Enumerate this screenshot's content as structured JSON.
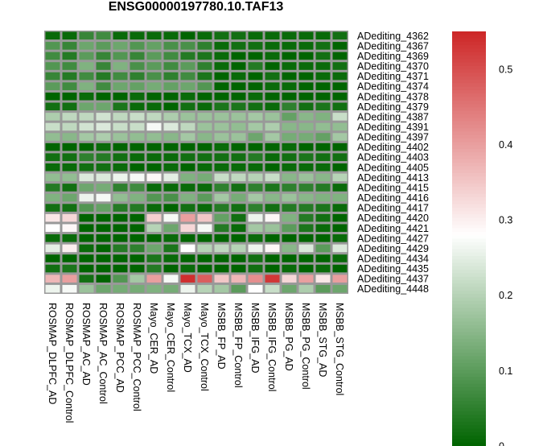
{
  "chart_data": {
    "type": "heatmap",
    "title": "ENSG00000197780.10.TAF13",
    "columns": [
      "ROSMAP_DLPFC_AD",
      "ROSMAP_DLPFC_Control",
      "ROSMAP_AC_AD",
      "ROSMAP_AC_Control",
      "ROSMAP_PCC_AD",
      "ROSMAP_PCC_Control",
      "Mayo_CER_AD",
      "Mayo_CER_Control",
      "Mayo_TCX_AD",
      "Mayo_TCX_Control",
      "MSBB_FP_AD",
      "MSBB_FP_Control",
      "MSBB_IFG_AD",
      "MSBB_IFG_Control",
      "MSBB_PG_AD",
      "MSBB_PG_Control",
      "MSBB_STG_AD",
      "MSBB_STG_Control"
    ],
    "rows": [
      "ADediting_4362",
      "ADediting_4367",
      "ADediting_4369",
      "ADediting_4370",
      "ADediting_4371",
      "ADediting_4374",
      "ADediting_4378",
      "ADediting_4379",
      "ADediting_4387",
      "ADediting_4391",
      "ADediting_4397",
      "ADediting_4402",
      "ADediting_4403",
      "ADediting_4405",
      "ADediting_4413",
      "ADediting_4415",
      "ADediting_4416",
      "ADediting_4417",
      "ADediting_4420",
      "ADediting_4421",
      "ADediting_4427",
      "ADediting_4429",
      "ADediting_4434",
      "ADediting_4435",
      "ADediting_4437",
      "ADediting_4448"
    ],
    "values": [
      [
        0.01,
        0.01,
        0.06,
        0.07,
        0.01,
        0.01,
        0.01,
        0.01,
        0.0,
        0.01,
        0.02,
        0.02,
        0.01,
        0.01,
        0.01,
        0.01,
        0.01,
        0.02
      ],
      [
        0.09,
        0.06,
        0.12,
        0.1,
        0.12,
        0.09,
        0.11,
        0.08,
        0.08,
        0.05,
        0.01,
        0.02,
        0.02,
        0.01,
        0.01,
        0.01,
        0.02,
        0.0
      ],
      [
        0.07,
        0.04,
        0.1,
        0.06,
        0.09,
        0.06,
        0.1,
        0.07,
        0.04,
        0.03,
        0.01,
        0.0,
        0.0,
        0.01,
        0.0,
        0.0,
        0.02,
        0.0
      ],
      [
        0.09,
        0.07,
        0.14,
        0.06,
        0.14,
        0.08,
        0.1,
        0.07,
        0.1,
        0.05,
        0.01,
        0.0,
        0.04,
        0.0,
        0.01,
        0.01,
        0.01,
        0.02
      ],
      [
        0.06,
        0.04,
        0.07,
        0.04,
        0.07,
        0.05,
        0.08,
        0.05,
        0.07,
        0.03,
        0.0,
        0.01,
        0.0,
        0.02,
        0.0,
        0.0,
        0.01,
        0.01
      ],
      [
        0.1,
        0.07,
        0.14,
        0.07,
        0.12,
        0.11,
        0.13,
        0.11,
        0.12,
        0.09,
        0.0,
        0.0,
        0.0,
        0.01,
        0.01,
        0.0,
        0.0,
        0.0
      ],
      [
        0.0,
        0.0,
        0.01,
        0.0,
        0.0,
        0.01,
        0.0,
        0.0,
        0.01,
        0.0,
        0.0,
        0.0,
        0.01,
        0.0,
        0.0,
        0.0,
        0.0,
        0.0
      ],
      [
        0.02,
        0.02,
        0.12,
        0.12,
        0.03,
        0.01,
        0.01,
        0.0,
        0.02,
        0.01,
        0.03,
        0.03,
        0.02,
        0.01,
        0.05,
        0.02,
        0.03,
        0.02
      ],
      [
        0.19,
        0.21,
        0.21,
        0.23,
        0.21,
        0.22,
        0.21,
        0.19,
        0.17,
        0.17,
        0.17,
        0.17,
        0.18,
        0.17,
        0.11,
        0.15,
        0.14,
        0.22
      ],
      [
        0.22,
        0.21,
        0.23,
        0.24,
        0.22,
        0.22,
        0.27,
        0.24,
        0.21,
        0.17,
        0.17,
        0.16,
        0.18,
        0.19,
        0.15,
        0.15,
        0.16,
        0.16
      ],
      [
        0.16,
        0.15,
        0.18,
        0.19,
        0.17,
        0.16,
        0.16,
        0.15,
        0.18,
        0.15,
        0.17,
        0.17,
        0.12,
        0.18,
        0.13,
        0.13,
        0.11,
        0.18
      ],
      [
        0.0,
        0.0,
        0.0,
        0.01,
        0.0,
        0.0,
        0.0,
        0.0,
        0.0,
        0.0,
        0.01,
        0.0,
        0.0,
        0.0,
        0.01,
        0.0,
        0.0,
        0.0
      ],
      [
        0.02,
        0.02,
        0.05,
        0.04,
        0.02,
        0.01,
        0.01,
        0.01,
        0.02,
        0.02,
        0.02,
        0.02,
        0.04,
        0.01,
        0.02,
        0.03,
        0.02,
        0.02
      ],
      [
        0.01,
        0.01,
        0.02,
        0.02,
        0.01,
        0.0,
        0.0,
        0.01,
        0.0,
        0.01,
        0.01,
        0.01,
        0.01,
        0.0,
        0.01,
        0.01,
        0.01,
        0.0
      ],
      [
        0.16,
        0.16,
        0.24,
        0.24,
        0.26,
        0.27,
        0.29,
        0.25,
        0.14,
        0.13,
        0.22,
        0.21,
        0.2,
        0.22,
        0.15,
        0.17,
        0.15,
        0.2
      ],
      [
        0.04,
        0.02,
        0.12,
        0.13,
        0.05,
        0.07,
        0.01,
        0.01,
        0.01,
        0.01,
        0.05,
        0.02,
        0.05,
        0.03,
        0.05,
        0.05,
        0.04,
        0.01
      ],
      [
        0.14,
        0.12,
        0.26,
        0.27,
        0.16,
        0.14,
        0.09,
        0.08,
        0.14,
        0.1,
        0.18,
        0.13,
        0.18,
        0.15,
        0.17,
        0.15,
        0.14,
        0.14
      ],
      [
        0.02,
        0.02,
        0.09,
        0.11,
        0.04,
        0.04,
        0.01,
        0.0,
        0.02,
        0.01,
        0.04,
        0.02,
        0.05,
        0.02,
        0.04,
        0.04,
        0.03,
        0.01
      ],
      [
        0.31,
        0.33,
        0.0,
        0.0,
        0.0,
        0.0,
        0.34,
        0.27,
        0.4,
        0.35,
        0.11,
        0.02,
        0.26,
        0.29,
        0.14,
        0.04,
        0.02,
        0.0
      ],
      [
        0.28,
        0.29,
        0.0,
        0.0,
        0.0,
        0.0,
        0.2,
        0.12,
        0.33,
        0.27,
        0.04,
        0.01,
        0.18,
        0.17,
        0.1,
        0.03,
        0.01,
        0.0
      ],
      [
        0.01,
        0.01,
        0.0,
        0.0,
        0.0,
        0.0,
        0.0,
        0.01,
        0.0,
        0.0,
        0.0,
        0.0,
        0.01,
        0.0,
        0.0,
        0.0,
        0.0,
        0.01
      ],
      [
        0.25,
        0.3,
        0.01,
        0.0,
        0.04,
        0.05,
        0.12,
        0.03,
        0.28,
        0.2,
        0.21,
        0.2,
        0.26,
        0.29,
        0.15,
        0.24,
        0.1,
        0.24
      ],
      [
        0.0,
        0.0,
        0.0,
        0.0,
        0.0,
        0.0,
        0.03,
        0.01,
        0.0,
        0.0,
        0.0,
        0.0,
        0.02,
        0.0,
        0.0,
        0.0,
        0.0,
        0.01
      ],
      [
        0.02,
        0.03,
        0.0,
        0.0,
        0.0,
        0.0,
        0.04,
        0.0,
        0.01,
        0.0,
        0.0,
        0.0,
        0.02,
        0.0,
        0.01,
        0.0,
        0.01,
        0.0
      ],
      [
        0.37,
        0.4,
        0.02,
        0.0,
        0.09,
        0.18,
        0.4,
        0.27,
        0.54,
        0.48,
        0.35,
        0.37,
        0.42,
        0.53,
        0.33,
        0.4,
        0.31,
        0.4
      ],
      [
        0.26,
        0.27,
        0.17,
        0.12,
        0.13,
        0.13,
        0.14,
        0.13,
        0.26,
        0.2,
        0.18,
        0.1,
        0.28,
        0.22,
        0.12,
        0.19,
        0.1,
        0.12
      ]
    ],
    "color_scale": {
      "low": "#006400",
      "mid": "#ffffff",
      "high": "#cd2626",
      "min": 0,
      "mid_value": 0.28,
      "max": 0.55
    },
    "legend": {
      "placement": "right",
      "ticks": [
        "0",
        "0.1",
        "0.2",
        "0.3",
        "0.4",
        "0.5"
      ],
      "tick_values": [
        0,
        0.1,
        0.2,
        0.3,
        0.4,
        0.5
      ]
    }
  }
}
